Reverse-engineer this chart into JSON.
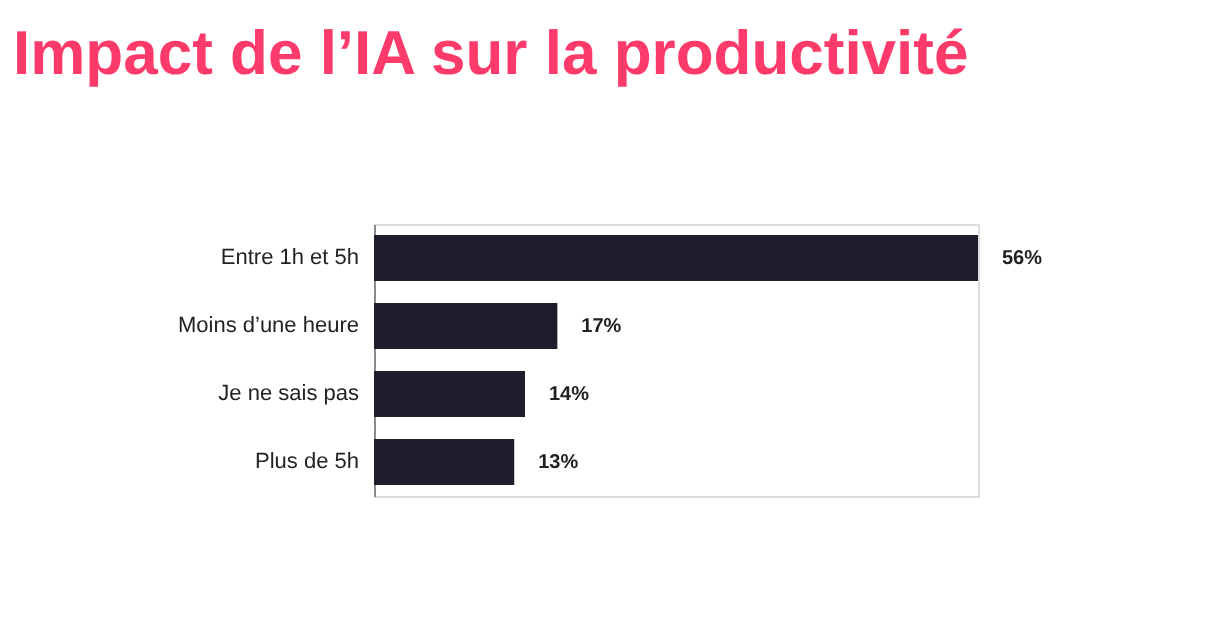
{
  "chart_data": {
    "type": "bar",
    "orientation": "horizontal",
    "title": "Impact de l’IA sur la productivité",
    "categories": [
      "Entre 1h et 5h",
      "Moins d’une heure",
      "Je ne sais pas",
      "Plus de 5h"
    ],
    "values": [
      56,
      17,
      14,
      13
    ],
    "value_labels": [
      "56%",
      "17%",
      "14%",
      "13%"
    ],
    "color": "#1f1d2b"
  }
}
